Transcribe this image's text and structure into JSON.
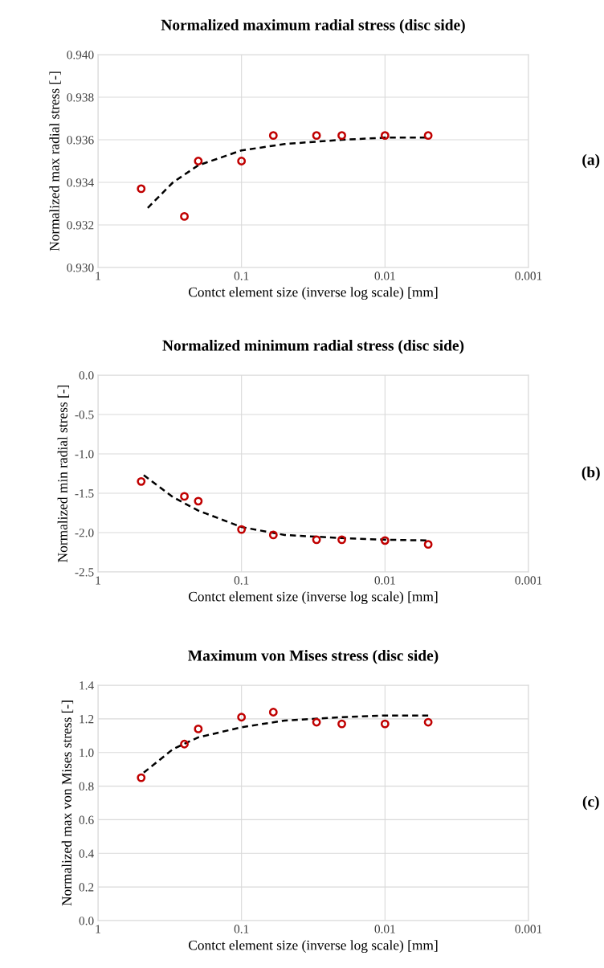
{
  "chart_data": [
    {
      "type": "scatter",
      "title": "Normalized maximum radial stress (disc side)",
      "xlabel": "Contct element size (inverse log scale) [mm]",
      "ylabel": "Normalized max radial stress [-]",
      "annotations": [
        "(a)"
      ],
      "log": "x",
      "grid": true,
      "legend": false,
      "xlim": [
        1,
        0.001
      ],
      "xticks": [
        1,
        0.1,
        0.01,
        0.001
      ],
      "ylim": [
        0.93,
        0.94
      ],
      "yticks": [
        {
          "value": 0.93,
          "label": "0.930"
        },
        {
          "value": 0.932,
          "label": "0.932"
        },
        {
          "value": 0.934,
          "label": "0.934"
        },
        {
          "value": 0.936,
          "label": "0.936"
        },
        {
          "value": 0.938,
          "label": "0.938"
        },
        {
          "value": 0.94,
          "label": "0.940"
        }
      ],
      "series": [
        {
          "type": "scatter",
          "marker": "circle",
          "color": "#c00000",
          "x": [
            0.5,
            0.25,
            0.2,
            0.1,
            0.06,
            0.03,
            0.02,
            0.01,
            0.005
          ],
          "values": [
            0.9337,
            0.9324,
            0.935,
            0.935,
            0.9362,
            0.9362,
            0.9362,
            0.9362,
            0.9362
          ]
        },
        {
          "type": "line",
          "line_style": "dashed",
          "color": "#000000",
          "x": [
            0.45,
            0.3,
            0.2,
            0.1,
            0.05,
            0.02,
            0.01,
            0.005
          ],
          "values": [
            0.9328,
            0.934,
            0.9348,
            0.9355,
            0.9358,
            0.936,
            0.9361,
            0.9361
          ]
        }
      ]
    },
    {
      "type": "scatter",
      "title": "Normalized minimum radial stress (disc side)",
      "xlabel": "Contct element size (inverse log scale) [mm]",
      "ylabel": "Normalized min radial stress [-]",
      "annotations": [
        "(b)"
      ],
      "log": "x",
      "grid": true,
      "legend": false,
      "xlim": [
        1,
        0.001
      ],
      "xticks": [
        1,
        0.1,
        0.01,
        0.001
      ],
      "ylim": [
        -2.5,
        0
      ],
      "yticks": [
        {
          "value": -2.5,
          "label": "-2.5"
        },
        {
          "value": -2,
          "label": "-2.0"
        },
        {
          "value": -1.5,
          "label": "-1.5"
        },
        {
          "value": -1,
          "label": "-1.0"
        },
        {
          "value": -0.5,
          "label": "-0.5"
        },
        {
          "value": 0,
          "label": "0.0"
        }
      ],
      "series": [
        {
          "type": "scatter",
          "marker": "circle",
          "color": "#c00000",
          "x": [
            0.5,
            0.25,
            0.2,
            0.1,
            0.06,
            0.03,
            0.02,
            0.01,
            0.005
          ],
          "values": [
            -1.35,
            -1.54,
            -1.6,
            -1.96,
            -2.03,
            -2.09,
            -2.09,
            -2.1,
            -2.15
          ]
        },
        {
          "type": "line",
          "line_style": "dashed",
          "color": "#000000",
          "x": [
            0.48,
            0.3,
            0.2,
            0.1,
            0.05,
            0.02,
            0.01,
            0.005
          ],
          "values": [
            -1.27,
            -1.55,
            -1.72,
            -1.93,
            -2.03,
            -2.07,
            -2.09,
            -2.1
          ]
        }
      ]
    },
    {
      "type": "scatter",
      "title": "Maximum von Mises stress (disc side)",
      "xlabel": "Contct element size (inverse log scale) [mm]",
      "ylabel": "Normalized max von Mises stress [-]",
      "annotations": [
        "(c)"
      ],
      "log": "x",
      "grid": true,
      "legend": false,
      "xlim": [
        1,
        0.001
      ],
      "xticks": [
        1,
        0.1,
        0.01,
        0.001
      ],
      "ylim": [
        0,
        1.4
      ],
      "yticks": [
        {
          "value": 0,
          "label": "0.0"
        },
        {
          "value": 0.2,
          "label": "0.2"
        },
        {
          "value": 0.4,
          "label": "0.4"
        },
        {
          "value": 0.6,
          "label": "0.6"
        },
        {
          "value": 0.8,
          "label": "0.8"
        },
        {
          "value": 1.0,
          "label": "1.0"
        },
        {
          "value": 1.2,
          "label": "1.2"
        },
        {
          "value": 1.4,
          "label": "1.4"
        }
      ],
      "series": [
        {
          "type": "scatter",
          "marker": "circle",
          "color": "#c00000",
          "x": [
            0.5,
            0.25,
            0.2,
            0.1,
            0.06,
            0.03,
            0.02,
            0.01,
            0.005
          ],
          "values": [
            0.85,
            1.05,
            1.14,
            1.21,
            1.24,
            1.18,
            1.17,
            1.17,
            1.18
          ]
        },
        {
          "type": "line",
          "line_style": "dashed",
          "color": "#000000",
          "x": [
            0.48,
            0.3,
            0.2,
            0.1,
            0.05,
            0.02,
            0.01,
            0.005
          ],
          "values": [
            0.88,
            1.02,
            1.09,
            1.15,
            1.19,
            1.21,
            1.22,
            1.22
          ]
        }
      ]
    }
  ]
}
